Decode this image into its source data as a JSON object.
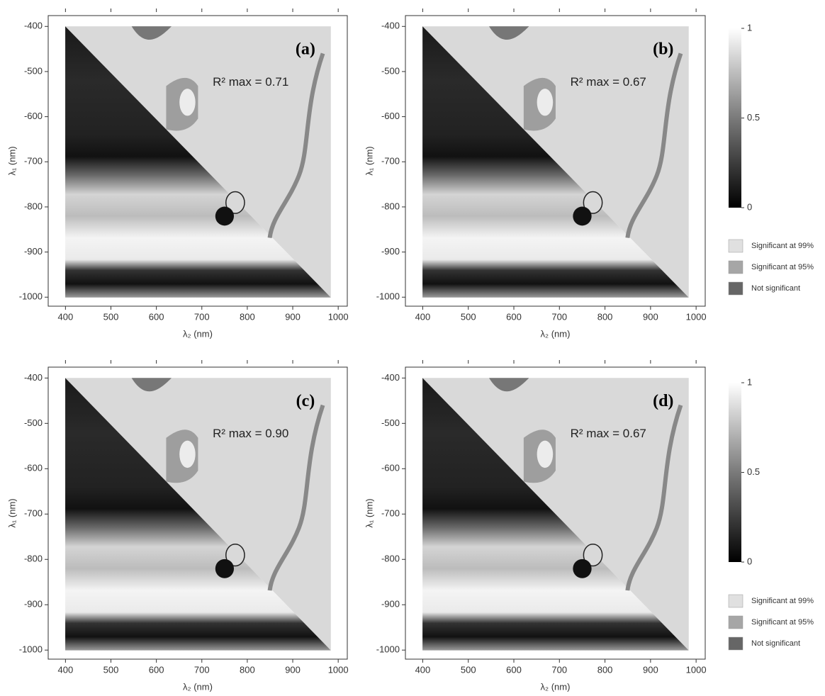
{
  "chart_data": [
    {
      "type": "heatmap",
      "label": "(a)",
      "annotation": "R² max = 0.71",
      "x_label": "λ₂ (nm)",
      "y_label": "λ₁ (nm)",
      "xlim": [
        362,
        1020
      ],
      "ylim": [
        -1020,
        -376
      ],
      "xticks": [
        400,
        500,
        600,
        700,
        800,
        900,
        1000
      ],
      "yticks": [
        -400,
        -500,
        -600,
        -700,
        -800,
        -900,
        -1000
      ]
    },
    {
      "type": "heatmap",
      "label": "(b)",
      "annotation": "R² max = 0.67",
      "x_label": "λ₂ (nm)",
      "y_label": "λ₁ (nm)",
      "xlim": [
        362,
        1020
      ],
      "ylim": [
        -1020,
        -376
      ],
      "xticks": [
        400,
        500,
        600,
        700,
        800,
        900,
        1000
      ],
      "yticks": [
        -400,
        -500,
        -600,
        -700,
        -800,
        -900,
        -1000
      ],
      "colorbar": {
        "lim": [
          0,
          1
        ],
        "ticks": [
          0,
          0.5,
          1
        ]
      },
      "legend": [
        {
          "name": "Significant at 99%",
          "color": "#e0e0e0"
        },
        {
          "name": "Significant at 95%",
          "color": "#a6a6a6"
        },
        {
          "name": "Not significant",
          "color": "#666666"
        }
      ]
    },
    {
      "type": "heatmap",
      "label": "(c)",
      "annotation": "R² max = 0.90",
      "x_label": "λ₂ (nm)",
      "y_label": "λ₁ (nm)",
      "xlim": [
        362,
        1020
      ],
      "ylim": [
        -1020,
        -376
      ],
      "xticks": [
        400,
        500,
        600,
        700,
        800,
        900,
        1000
      ],
      "yticks": [
        -400,
        -500,
        -600,
        -700,
        -800,
        -900,
        -1000
      ]
    },
    {
      "type": "heatmap",
      "label": "(d)",
      "annotation": "R² max = 0.67",
      "x_label": "λ₂ (nm)",
      "y_label": "λ₁ (nm)",
      "xlim": [
        362,
        1020
      ],
      "ylim": [
        -1020,
        -376
      ],
      "xticks": [
        400,
        500,
        600,
        700,
        800,
        900,
        1000
      ],
      "yticks": [
        -400,
        -500,
        -600,
        -700,
        -800,
        -900,
        -1000
      ],
      "colorbar": {
        "lim": [
          0,
          1
        ],
        "ticks": [
          0,
          0.5,
          1
        ]
      },
      "legend": [
        {
          "name": "Significant at 99%",
          "color": "#e0e0e0"
        },
        {
          "name": "Significant at 95%",
          "color": "#a6a6a6"
        },
        {
          "name": "Not significant",
          "color": "#666666"
        }
      ]
    }
  ]
}
